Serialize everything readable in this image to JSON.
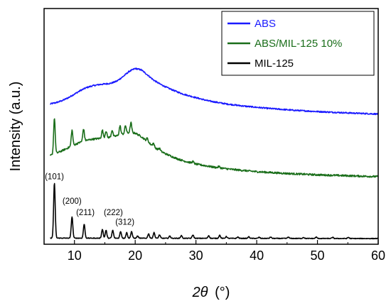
{
  "chart_data": {
    "type": "line",
    "xlabel_italic": "2θ",
    "xlabel_unit": "(°)",
    "ylabel": "Intensity (a.u.)",
    "xlim": [
      5,
      60
    ],
    "xticks": [
      10,
      20,
      30,
      40,
      50,
      60
    ],
    "ylim": [
      0,
      10
    ],
    "yticks_shown": false,
    "grid": false,
    "legend_position": "top-right",
    "series": [
      {
        "name": "ABS",
        "color": "#1a1aff",
        "points": [
          [
            6,
            6.0
          ],
          [
            7,
            6.06
          ],
          [
            8,
            6.15
          ],
          [
            9,
            6.28
          ],
          [
            10,
            6.44
          ],
          [
            11,
            6.6
          ],
          [
            12,
            6.73
          ],
          [
            13,
            6.81
          ],
          [
            14,
            6.86
          ],
          [
            15,
            6.89
          ],
          [
            16,
            6.92
          ],
          [
            17,
            7.02
          ],
          [
            18,
            7.22
          ],
          [
            19,
            7.45
          ],
          [
            20,
            7.58
          ],
          [
            21,
            7.52
          ],
          [
            22,
            7.3
          ],
          [
            23,
            7.07
          ],
          [
            24,
            6.9
          ],
          [
            25,
            6.76
          ],
          [
            26,
            6.64
          ],
          [
            27,
            6.53
          ],
          [
            28,
            6.43
          ],
          [
            30,
            6.28
          ],
          [
            32,
            6.14
          ],
          [
            35,
            6.0
          ],
          [
            38,
            5.9
          ],
          [
            42,
            5.8
          ],
          [
            46,
            5.72
          ],
          [
            50,
            5.66
          ],
          [
            55,
            5.6
          ],
          [
            60,
            5.55
          ]
        ]
      },
      {
        "name": "ABS/MIL-125 10%",
        "color": "#1a6e1a",
        "baseline": [
          [
            6,
            3.7
          ],
          [
            7,
            3.8
          ],
          [
            8,
            3.92
          ],
          [
            9,
            4.05
          ],
          [
            10,
            4.18
          ],
          [
            11,
            4.3
          ],
          [
            12,
            4.38
          ],
          [
            13,
            4.43
          ],
          [
            14,
            4.46
          ],
          [
            15,
            4.49
          ],
          [
            16,
            4.52
          ],
          [
            17,
            4.58
          ],
          [
            18,
            4.66
          ],
          [
            19,
            4.72
          ],
          [
            20,
            4.7
          ],
          [
            21,
            4.55
          ],
          [
            22,
            4.32
          ],
          [
            23,
            4.1
          ],
          [
            24,
            3.92
          ],
          [
            25,
            3.78
          ],
          [
            26,
            3.66
          ],
          [
            27,
            3.55
          ],
          [
            28,
            3.46
          ],
          [
            30,
            3.32
          ],
          [
            33,
            3.18
          ],
          [
            36,
            3.08
          ],
          [
            40,
            2.98
          ],
          [
            45,
            2.9
          ],
          [
            50,
            2.84
          ],
          [
            55,
            2.8
          ],
          [
            60,
            2.76
          ]
        ],
        "peaks": [
          [
            6.7,
            1.6
          ],
          [
            9.6,
            0.7
          ],
          [
            11.5,
            0.55
          ],
          [
            14.6,
            0.35
          ],
          [
            15.2,
            0.3
          ],
          [
            16.2,
            0.3
          ],
          [
            17.5,
            0.4
          ],
          [
            18.4,
            0.35
          ],
          [
            19.3,
            0.45
          ],
          [
            22.0,
            0.15
          ],
          [
            23.0,
            0.15
          ],
          [
            24.0,
            0.1
          ],
          [
            29.5,
            0.08
          ],
          [
            33.8,
            0.06
          ]
        ]
      },
      {
        "name": "MIL-125",
        "color": "#000000",
        "baseline": [
          [
            6,
            0.02
          ],
          [
            60,
            0.0
          ]
        ],
        "peaks": [
          [
            6.7,
            2.45
          ],
          [
            9.6,
            0.95
          ],
          [
            11.6,
            0.62
          ],
          [
            14.6,
            0.4
          ],
          [
            15.2,
            0.35
          ],
          [
            16.3,
            0.35
          ],
          [
            17.6,
            0.3
          ],
          [
            18.6,
            0.25
          ],
          [
            19.4,
            0.3
          ],
          [
            20.4,
            0.1
          ],
          [
            22.2,
            0.2
          ],
          [
            23.1,
            0.25
          ],
          [
            24.0,
            0.15
          ],
          [
            25.7,
            0.1
          ],
          [
            27.6,
            0.12
          ],
          [
            29.5,
            0.15
          ],
          [
            32.1,
            0.12
          ],
          [
            33.9,
            0.14
          ],
          [
            35.0,
            0.08
          ],
          [
            36.9,
            0.06
          ],
          [
            38.7,
            0.07
          ],
          [
            40.4,
            0.05
          ],
          [
            42.3,
            0.06
          ],
          [
            45.2,
            0.06
          ],
          [
            47.7,
            0.05
          ],
          [
            49.8,
            0.06
          ],
          [
            52.5,
            0.05
          ],
          [
            55.1,
            0.05
          ]
        ]
      }
    ],
    "annotations": [
      {
        "text": "(101)",
        "x": 6.7,
        "y": 2.65
      },
      {
        "text": "(200)",
        "x": 9.6,
        "y": 1.55
      },
      {
        "text": "(211)",
        "x": 11.8,
        "y": 1.05
      },
      {
        "text": "(222)",
        "x": 16.4,
        "y": 1.05
      },
      {
        "text": "(312)",
        "x": 18.3,
        "y": 0.62
      }
    ]
  }
}
